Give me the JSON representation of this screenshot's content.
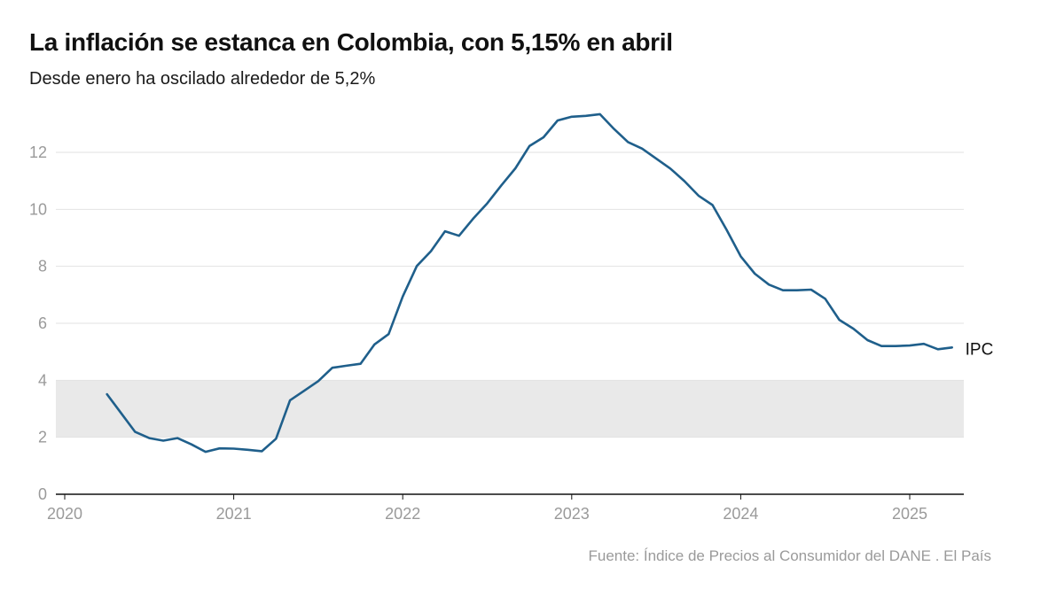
{
  "chart_data": {
    "type": "line",
    "title": "La inflación se estanca en Colombia, con 5,15% en abril",
    "subtitle": "Desde enero ha oscilado alrededor de 5,2%",
    "source": "Fuente: Índice de Precios al Consumidor del DANE . El País",
    "ylim": [
      0,
      13.5
    ],
    "xlim": [
      2020,
      2025.33
    ],
    "yticks": [
      0,
      2,
      4,
      6,
      8,
      10,
      12
    ],
    "xticks": [
      2020,
      2021,
      2022,
      2023,
      2024,
      2025
    ],
    "grid": true,
    "target_band": [
      2,
      4
    ],
    "colors": {
      "line": "#1f5f8b",
      "band": "#e9e9e9",
      "grid": "#e2e2e2",
      "axis": "#111111"
    },
    "series": [
      {
        "name": "IPC",
        "x": [
          "2020-04",
          "2020-05",
          "2020-06",
          "2020-07",
          "2020-08",
          "2020-09",
          "2020-10",
          "2020-11",
          "2020-12",
          "2021-01",
          "2021-02",
          "2021-03",
          "2021-04",
          "2021-05",
          "2021-06",
          "2021-07",
          "2021-08",
          "2021-09",
          "2021-10",
          "2021-11",
          "2021-12",
          "2022-01",
          "2022-02",
          "2022-03",
          "2022-04",
          "2022-05",
          "2022-06",
          "2022-07",
          "2022-08",
          "2022-09",
          "2022-10",
          "2022-11",
          "2022-12",
          "2023-01",
          "2023-02",
          "2023-03",
          "2023-04",
          "2023-05",
          "2023-06",
          "2023-07",
          "2023-08",
          "2023-09",
          "2023-10",
          "2023-11",
          "2023-12",
          "2024-01",
          "2024-02",
          "2024-03",
          "2024-04",
          "2024-05",
          "2024-06",
          "2024-07",
          "2024-08",
          "2024-09",
          "2024-10",
          "2024-11",
          "2024-12",
          "2025-01",
          "2025-02",
          "2025-03",
          "2025-04"
        ],
        "values": [
          3.51,
          2.85,
          2.19,
          1.97,
          1.88,
          1.97,
          1.75,
          1.49,
          1.61,
          1.6,
          1.56,
          1.51,
          1.95,
          3.3,
          3.63,
          3.97,
          4.44,
          4.51,
          4.58,
          5.26,
          5.62,
          6.94,
          8.01,
          8.53,
          9.23,
          9.07,
          9.67,
          10.21,
          10.84,
          11.44,
          12.22,
          12.53,
          13.12,
          13.25,
          13.28,
          13.34,
          12.82,
          12.36,
          12.13,
          11.78,
          11.43,
          10.99,
          10.48,
          10.15,
          9.28,
          8.35,
          7.74,
          7.36,
          7.16,
          7.16,
          7.18,
          6.86,
          6.12,
          5.81,
          5.41,
          5.2,
          5.2,
          5.22,
          5.28,
          5.09,
          5.15
        ]
      }
    ]
  }
}
